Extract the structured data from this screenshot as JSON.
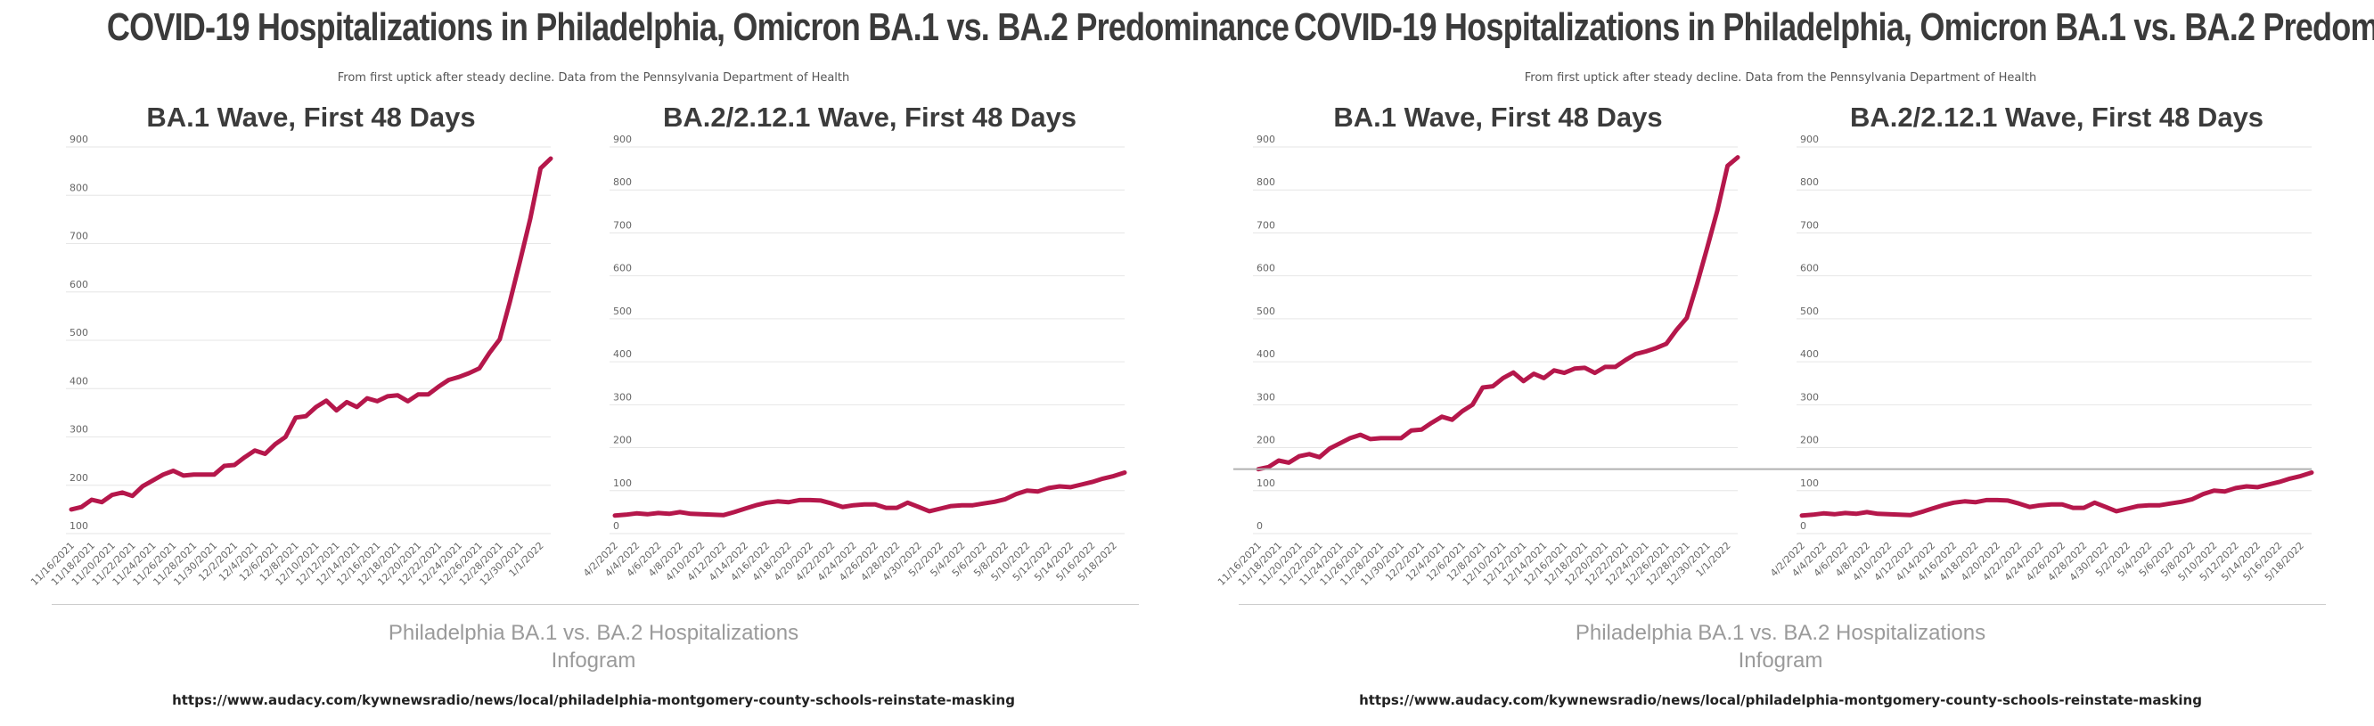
{
  "header": {
    "title": "COVID-19 Hospitalizations in Philadelphia, Omicron BA.1 vs. BA.2 Predominance",
    "subtitle": "From first uptick after steady decline. Data from the Pennsylvania Department of Health"
  },
  "footer": {
    "line1": "Philadelphia BA.1 vs. BA.2 Hospitalizations",
    "line2": "Infogram",
    "link": "https://www.audacy.com/kywnewsradio/news/local/philadelphia-montgomery-county-schools-reinstate-masking"
  },
  "colors": {
    "line": "#b5174b",
    "grid": "#e6e6e6",
    "tick": "#666666",
    "title": "#3b3b3b"
  },
  "chart_data": [
    {
      "type": "line",
      "title": "BA.1 Wave, First 48 Days",
      "panel": "left",
      "ylim": [
        100,
        900
      ],
      "yticks": [
        100,
        200,
        300,
        400,
        500,
        600,
        700,
        800,
        900
      ],
      "grid": true,
      "x_tick_labels": [
        "11/16/2021",
        "11/18/2021",
        "11/20/2021",
        "11/22/2021",
        "11/24/2021",
        "11/26/2021",
        "11/28/2021",
        "11/30/2021",
        "12/2/2021",
        "12/4/2021",
        "12/6/2021",
        "12/8/2021",
        "12/10/2021",
        "12/12/2021",
        "12/14/2021",
        "12/16/2021",
        "12/18/2021",
        "12/20/2021",
        "12/22/2021",
        "12/24/2021",
        "12/26/2021",
        "12/28/2021",
        "12/30/2021",
        "1/1/2022"
      ],
      "series": [
        {
          "values": [
            150,
            155,
            170,
            165,
            180,
            185,
            178,
            198,
            210,
            222,
            230,
            220,
            222,
            222,
            222,
            240,
            242,
            258,
            272,
            265,
            285,
            300,
            340,
            343,
            362,
            375,
            355,
            372,
            362,
            380,
            374,
            384,
            386,
            374,
            388,
            388,
            404,
            418,
            424,
            432,
            442,
            474,
            502,
            580,
            665,
            752,
            856,
            876
          ]
        }
      ]
    },
    {
      "type": "line",
      "title": "BA.2/2.12.1 Wave, First 48 Days",
      "panel": "left",
      "ylim": [
        0,
        900
      ],
      "yticks": [
        0,
        100,
        200,
        300,
        400,
        500,
        600,
        700,
        800,
        900
      ],
      "grid": true,
      "x_tick_labels": [
        "4/2/2022",
        "4/4/2022",
        "4/6/2022",
        "4/8/2022",
        "4/10/2022",
        "4/12/2022",
        "4/14/2022",
        "4/16/2022",
        "4/18/2022",
        "4/20/2022",
        "4/22/2022",
        "4/24/2022",
        "4/26/2022",
        "4/28/2022",
        "4/30/2022",
        "5/2/2022",
        "5/4/2022",
        "5/6/2022",
        "5/8/2022",
        "5/10/2022",
        "5/12/2022",
        "5/14/2022",
        "5/16/2022",
        "5/18/2022"
      ],
      "series": [
        {
          "values": [
            42,
            44,
            47,
            45,
            48,
            46,
            50,
            46,
            45,
            44,
            43,
            50,
            58,
            66,
            72,
            75,
            73,
            78,
            78,
            77,
            70,
            62,
            66,
            68,
            68,
            60,
            60,
            72,
            62,
            52,
            58,
            64,
            66,
            66,
            70,
            74,
            80,
            92,
            100,
            98,
            106,
            110,
            108,
            114,
            120,
            128,
            134,
            142
          ]
        }
      ]
    },
    {
      "type": "line",
      "title": "BA.1 Wave, First 48 Days",
      "panel": "right",
      "ylim": [
        0,
        900
      ],
      "yticks": [
        0,
        100,
        200,
        300,
        400,
        500,
        600,
        700,
        800,
        900
      ],
      "grid": true,
      "x_tick_labels": [
        "11/16/2021",
        "11/18/2021",
        "11/20/2021",
        "11/22/2021",
        "11/24/2021",
        "11/26/2021",
        "11/28/2021",
        "11/30/2021",
        "12/2/2021",
        "12/4/2021",
        "12/6/2021",
        "12/8/2021",
        "12/10/2021",
        "12/12/2021",
        "12/14/2021",
        "12/16/2021",
        "12/18/2021",
        "12/20/2021",
        "12/22/2021",
        "12/24/2021",
        "12/26/2021",
        "12/28/2021",
        "12/30/2021",
        "1/1/2022"
      ],
      "series": [
        {
          "values": [
            150,
            155,
            170,
            165,
            180,
            185,
            178,
            198,
            210,
            222,
            230,
            220,
            222,
            222,
            222,
            240,
            242,
            258,
            272,
            265,
            285,
            300,
            340,
            343,
            362,
            375,
            355,
            372,
            362,
            380,
            374,
            384,
            386,
            374,
            388,
            388,
            404,
            418,
            424,
            432,
            442,
            474,
            502,
            580,
            665,
            752,
            856,
            876
          ]
        }
      ]
    },
    {
      "type": "line",
      "title": "BA.2/2.12.1 Wave, First 48 Days",
      "panel": "right",
      "ylim": [
        0,
        900
      ],
      "yticks": [
        0,
        100,
        200,
        300,
        400,
        500,
        600,
        700,
        800,
        900
      ],
      "grid": true,
      "x_tick_labels": [
        "4/2/2022",
        "4/4/2022",
        "4/6/2022",
        "4/8/2022",
        "4/10/2022",
        "4/12/2022",
        "4/14/2022",
        "4/16/2022",
        "4/18/2022",
        "4/20/2022",
        "4/22/2022",
        "4/24/2022",
        "4/26/2022",
        "4/28/2022",
        "4/30/2022",
        "5/2/2022",
        "5/4/2022",
        "5/6/2022",
        "5/8/2022",
        "5/10/2022",
        "5/12/2022",
        "5/14/2022",
        "5/16/2022",
        "5/18/2022"
      ],
      "series": [
        {
          "values": [
            42,
            44,
            47,
            45,
            48,
            46,
            50,
            46,
            45,
            44,
            43,
            50,
            58,
            66,
            72,
            75,
            73,
            78,
            78,
            77,
            70,
            62,
            66,
            68,
            68,
            60,
            60,
            72,
            62,
            52,
            58,
            64,
            66,
            66,
            70,
            74,
            80,
            92,
            100,
            98,
            106,
            110,
            108,
            114,
            120,
            128,
            134,
            142
          ]
        }
      ]
    }
  ],
  "reference_line": {
    "panel": "right",
    "value": 150
  }
}
